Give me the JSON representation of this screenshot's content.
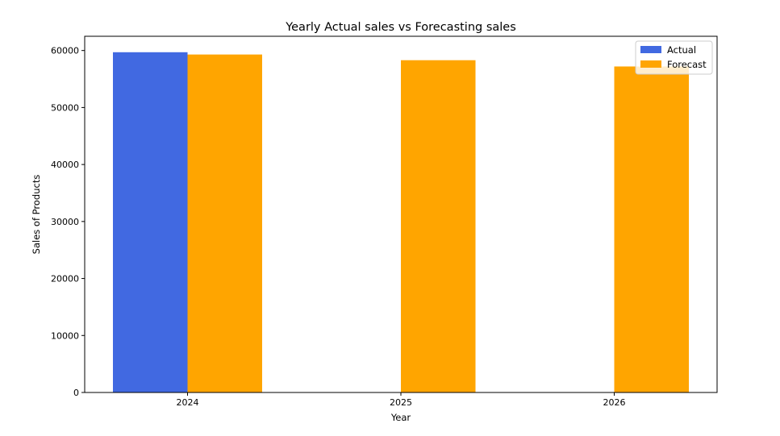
{
  "chart_data": {
    "type": "bar",
    "title": "Yearly Actual sales vs Forecasting sales",
    "xlabel": "Year",
    "ylabel": "Sales of Products",
    "categories": [
      "2024",
      "2025",
      "2026"
    ],
    "series": [
      {
        "name": "Actual",
        "color": "#4169e1",
        "values": [
          59700,
          null,
          null
        ]
      },
      {
        "name": "Forecast",
        "color": "#ffa500",
        "values": [
          59300,
          58300,
          57200
        ]
      }
    ],
    "ylim": [
      0,
      62500
    ],
    "yticks": [
      0,
      10000,
      20000,
      30000,
      40000,
      50000,
      60000
    ],
    "grid": false,
    "legend_position": "top-right"
  }
}
